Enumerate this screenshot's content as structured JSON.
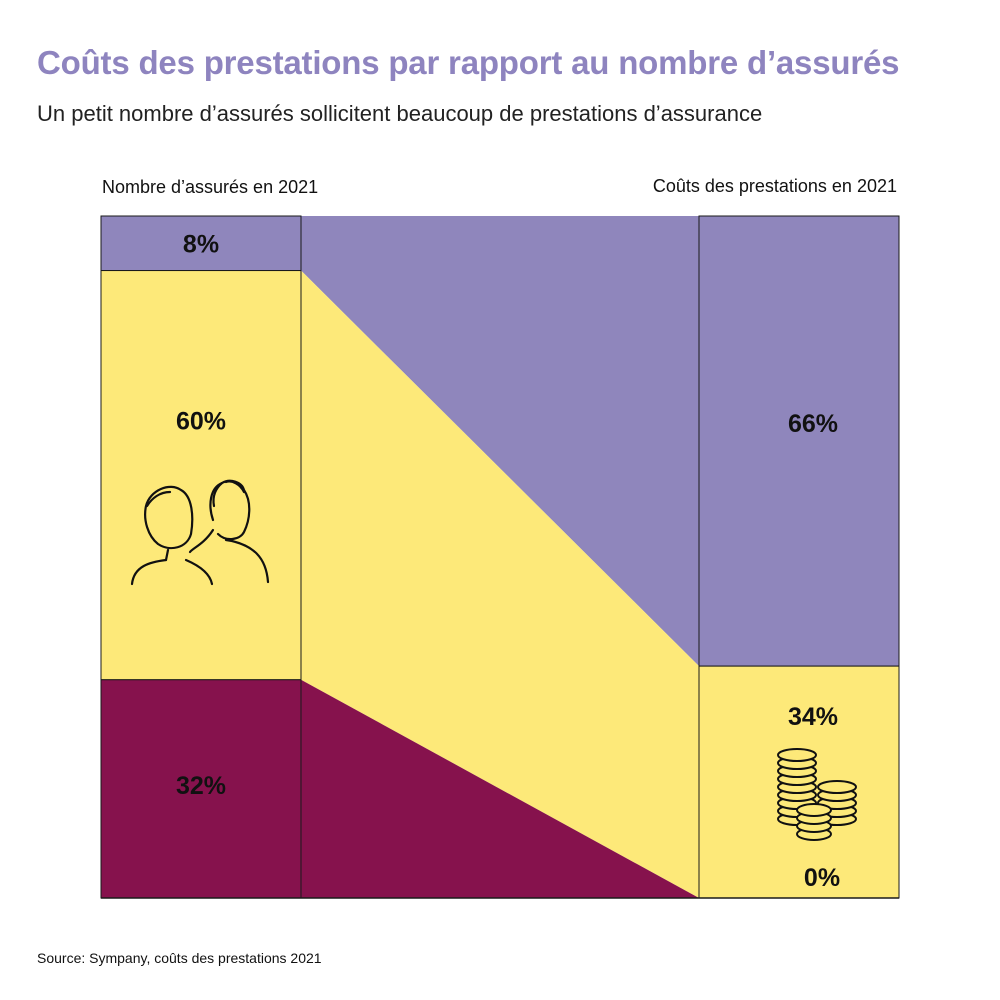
{
  "title": "Coûts des prestations par rapport au nombre d’assurés",
  "subtitle": "Un petit nombre d’assurés sollicitent beaucoup de prestations d’assurance",
  "source": "Source: Sympany, coûts des prestations 2021",
  "colors": {
    "title": "#8e84bf",
    "purple": "#8f86bc",
    "yellow": "#fde979",
    "maroon": "#86124d",
    "border": "#1a1a1a"
  },
  "chart_data": {
    "type": "sankey",
    "left_axis_label": "Nombre d’assurés en 2021",
    "right_axis_label": "Coûts des prestations en 2021",
    "left_column": [
      {
        "value": 8,
        "label": "8%",
        "color": "purple"
      },
      {
        "value": 60,
        "label": "60%",
        "color": "yellow",
        "icon": "people-icon"
      },
      {
        "value": 32,
        "label": "32%",
        "color": "maroon"
      }
    ],
    "right_column": [
      {
        "value": 66,
        "label": "66%",
        "color": "purple"
      },
      {
        "value": 34,
        "label": "34%",
        "color": "yellow",
        "icon": "coins-icon"
      },
      {
        "value": 0,
        "label": "0%",
        "color": "maroon"
      }
    ],
    "flows": [
      {
        "from": 0,
        "to": 0
      },
      {
        "from": 1,
        "to": 1
      },
      {
        "from": 2,
        "to": 2
      }
    ]
  }
}
